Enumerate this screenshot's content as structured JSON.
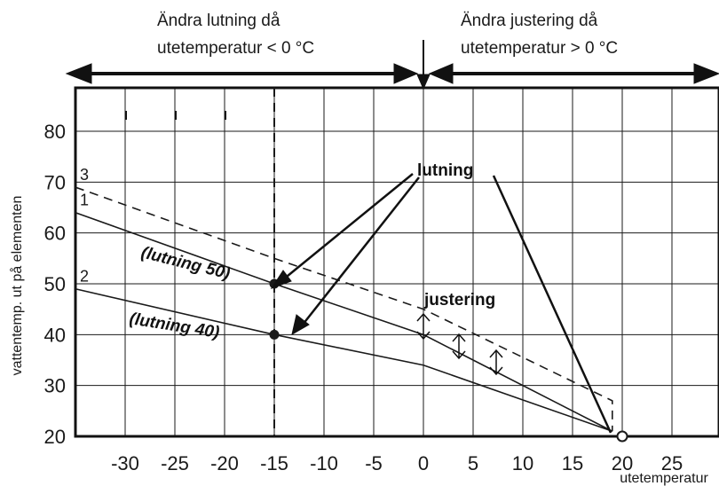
{
  "header": {
    "left_line1": "Ändra lutning då",
    "left_line2": "utetemperatur < 0 °C",
    "right_line1": "Ändra justering då",
    "right_line2": "utetemperatur > 0 °C"
  },
  "annotations": {
    "lutning": "lutning",
    "justering": "justering",
    "lutning_50": "(lutning 50)",
    "lutning_40": "(lutning 40)"
  },
  "chart_data": {
    "type": "line",
    "xlabel": "utetemperatur",
    "ylabel": "vattentemp. ut på elementen",
    "xlim": [
      -35,
      30
    ],
    "ylim": [
      20,
      90
    ],
    "x_ticks": [
      -30,
      -25,
      -20,
      -15,
      -10,
      -5,
      0,
      5,
      10,
      15,
      20,
      25
    ],
    "y_ticks": [
      20,
      30,
      40,
      50,
      60,
      70,
      80
    ],
    "grid": true,
    "series": [
      {
        "name": "1",
        "style": "solid",
        "points": [
          [
            -35,
            64
          ],
          [
            -15,
            50
          ],
          [
            0,
            40
          ],
          [
            19,
            21
          ]
        ]
      },
      {
        "name": "2",
        "style": "solid",
        "points": [
          [
            -35,
            49
          ],
          [
            -15,
            40
          ],
          [
            0,
            34
          ],
          [
            19,
            21
          ]
        ]
      },
      {
        "name": "3",
        "style": "dashed",
        "points": [
          [
            -35,
            69
          ],
          [
            -15,
            55
          ],
          [
            0,
            45
          ],
          [
            19,
            27
          ],
          [
            19,
            21
          ]
        ]
      }
    ],
    "markers": [
      {
        "x": -15,
        "y": 50,
        "kind": "filled"
      },
      {
        "x": -15,
        "y": 40,
        "kind": "filled"
      },
      {
        "x": 20,
        "y": 20,
        "kind": "open"
      }
    ],
    "reference_lines": [
      {
        "orientation": "vertical",
        "x": -15,
        "style": "dashed"
      }
    ],
    "colors": {
      "line": "#1a1a1a",
      "grid": "#1a1a1a",
      "background": "#ffffff"
    }
  }
}
